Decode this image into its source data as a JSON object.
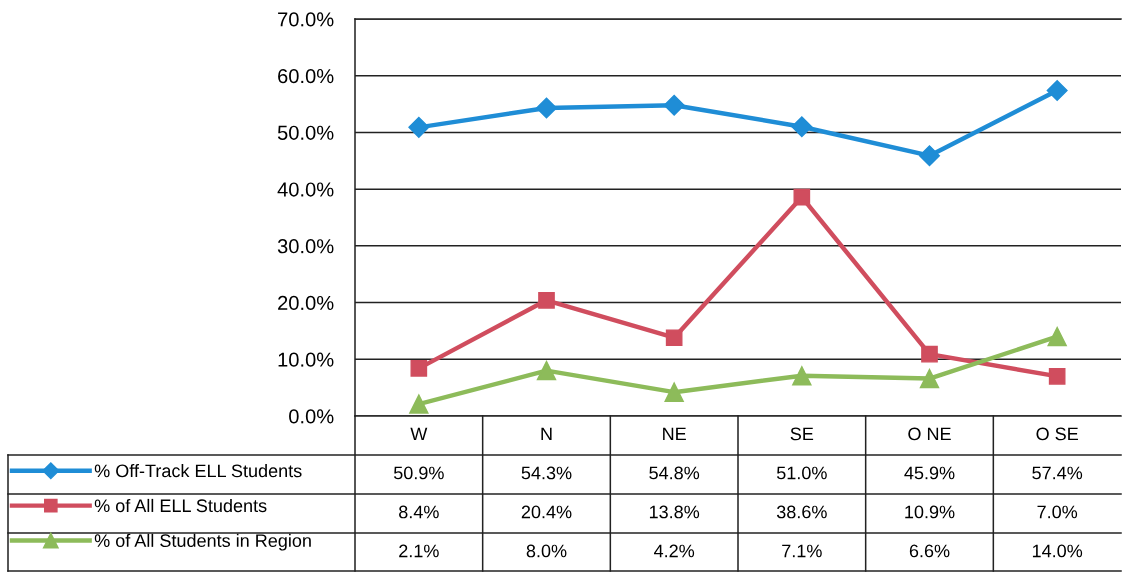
{
  "chart_data": {
    "type": "line",
    "categories": [
      "W",
      "N",
      "NE",
      "SE",
      "O NE",
      "O SE"
    ],
    "series": [
      {
        "name": "% Off-Track ELL Students",
        "color": "#1f8dd6",
        "marker": "diamond",
        "values": [
          50.9,
          54.3,
          54.8,
          51.0,
          45.9,
          57.4
        ],
        "value_labels": [
          "50.9%",
          "54.3%",
          "54.8%",
          "51.0%",
          "45.9%",
          "57.4%"
        ]
      },
      {
        "name": "% of All ELL Students",
        "color": "#d04d5e",
        "marker": "square",
        "values": [
          8.4,
          20.4,
          13.8,
          38.6,
          10.9,
          7.0
        ],
        "value_labels": [
          "8.4%",
          "20.4%",
          "13.8%",
          "38.6%",
          "10.9%",
          "7.0%"
        ]
      },
      {
        "name": "% of All Students in Region",
        "color": "#8dbb5a",
        "marker": "triangle",
        "values": [
          2.1,
          8.0,
          4.2,
          7.1,
          6.6,
          14.0
        ],
        "value_labels": [
          "2.1%",
          "8.0%",
          "4.2%",
          "7.1%",
          "6.6%",
          "14.0%"
        ]
      }
    ],
    "ylim": [
      0,
      70
    ],
    "yticks": [
      {
        "value": 0,
        "label": "0.0%"
      },
      {
        "value": 10,
        "label": "10.0%"
      },
      {
        "value": 20,
        "label": "20.0%"
      },
      {
        "value": 30,
        "label": "30.0%"
      },
      {
        "value": 40,
        "label": "40.0%"
      },
      {
        "value": 50,
        "label": "50.0%"
      },
      {
        "value": 60,
        "label": "60.0%"
      },
      {
        "value": 70,
        "label": "70.0%"
      }
    ],
    "grid": "y",
    "legend": "bottom left",
    "line_style": "solid"
  }
}
